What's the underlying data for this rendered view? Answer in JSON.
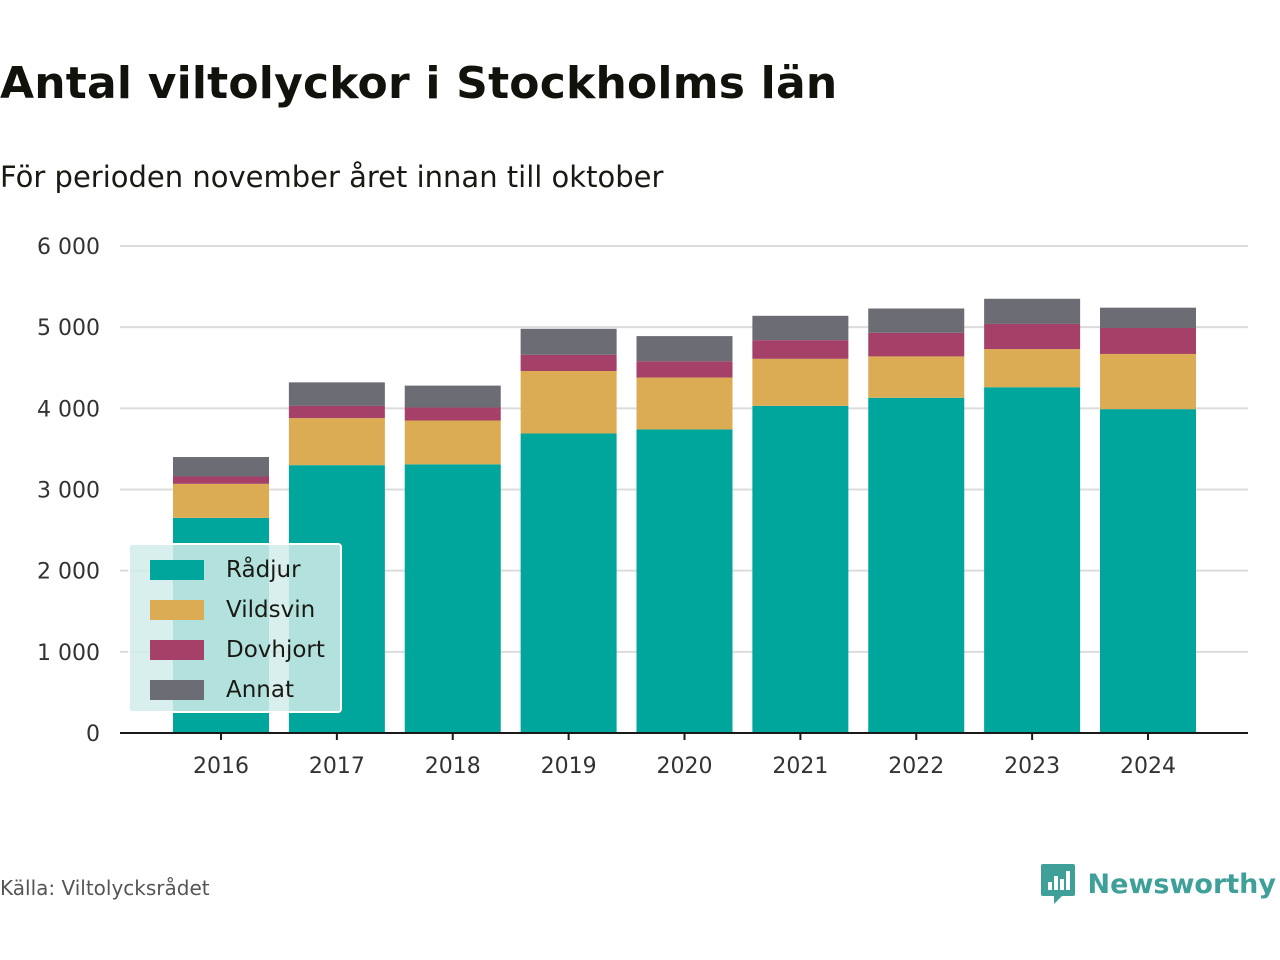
{
  "title": "Antal viltolyckor i Stockholms län",
  "subtitle": "För perioden november året innan till oktober",
  "source": "Källa: Viltolycksrådet",
  "brand": "Newsworthy",
  "brand_icon": "newsworthy-logo-icon",
  "colors": {
    "Rådjur": "#00a69c",
    "Vildsvin": "#dcac55",
    "Dovhjort": "#a54068",
    "Annat": "#6c6c74",
    "brand": "#3f9f99"
  },
  "chart_data": {
    "type": "bar",
    "stacked": true,
    "title": "Antal viltolyckor i Stockholms län",
    "subtitle": "För perioden november året innan till oktober",
    "categories": [
      "2016",
      "2017",
      "2018",
      "2019",
      "2020",
      "2021",
      "2022",
      "2023",
      "2024"
    ],
    "series": [
      {
        "name": "Rådjur",
        "values": [
          2650,
          3300,
          3310,
          3690,
          3740,
          4030,
          4130,
          4260,
          3990
        ]
      },
      {
        "name": "Vildsvin",
        "values": [
          420,
          580,
          540,
          770,
          640,
          580,
          510,
          470,
          680
        ]
      },
      {
        "name": "Dovhjort",
        "values": [
          90,
          150,
          160,
          200,
          200,
          230,
          290,
          310,
          320
        ]
      },
      {
        "name": "Annat",
        "values": [
          240,
          290,
          270,
          320,
          310,
          300,
          300,
          310,
          250
        ]
      }
    ],
    "ylim": [
      0,
      6000
    ],
    "yticks": [
      0,
      1000,
      2000,
      3000,
      4000,
      5000,
      6000
    ],
    "ytick_labels": [
      "0",
      "1 000",
      "2 000",
      "3 000",
      "4 000",
      "5 000",
      "6 000"
    ],
    "grid": true,
    "legend_position": "bottom-left"
  }
}
